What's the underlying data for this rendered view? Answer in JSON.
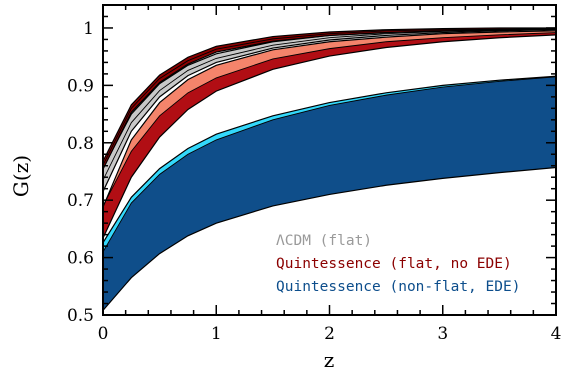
{
  "chart_data": {
    "type": "area",
    "xlabel": "z",
    "ylabel": "G(z)",
    "xlim": [
      0,
      4
    ],
    "ylim": [
      0.5,
      1.04
    ],
    "xticks": [
      0,
      1,
      2,
      3,
      4
    ],
    "xtick_labels": [
      "0",
      "1",
      "2",
      "3",
      "4"
    ],
    "yticks": [
      0.5,
      0.6,
      0.7,
      0.8,
      0.9,
      1.0
    ],
    "ytick_labels": [
      "0.5",
      "0.6",
      "0.7",
      "0.8",
      "0.9",
      "1"
    ],
    "grid": false,
    "legend_position": "bottom-right",
    "x": [
      0,
      0.25,
      0.5,
      0.75,
      1,
      1.5,
      2,
      2.5,
      3,
      3.5,
      4
    ],
    "bands": [
      {
        "legend": "Quintessence (non-flat, EDE)",
        "legend_color": "#0d4e8c",
        "lower": [
          0.508,
          0.565,
          0.607,
          0.638,
          0.66,
          0.69,
          0.71,
          0.726,
          0.738,
          0.748,
          0.757
        ],
        "upper": [
          0.626,
          0.705,
          0.755,
          0.79,
          0.815,
          0.847,
          0.87,
          0.887,
          0.9,
          0.909,
          0.916
        ],
        "fills": [
          "#0f4e8a",
          "#33d8fb"
        ],
        "split": [
          0.61,
          0.695,
          0.745,
          0.78,
          0.805,
          0.84,
          0.865,
          0.883,
          0.897,
          0.907,
          0.915
        ]
      },
      {
        "legend": "Quintessence (flat, no EDE)",
        "legend_color": "#8b0000",
        "lower": [
          0.634,
          0.74,
          0.81,
          0.858,
          0.89,
          0.928,
          0.951,
          0.966,
          0.976,
          0.983,
          0.988
        ],
        "upper": [
          0.688,
          0.805,
          0.87,
          0.91,
          0.935,
          0.962,
          0.976,
          0.984,
          0.99,
          0.993,
          0.995
        ],
        "fills": [
          "#b10e14",
          "#f4846b"
        ],
        "split": [
          0.69,
          0.785,
          0.847,
          0.887,
          0.913,
          0.946,
          0.964,
          0.976,
          0.983,
          0.988,
          0.992
        ]
      },
      {
        "legend": "ΛCDM (flat)",
        "legend_color": "#9a9a9a",
        "lower": [
          0.715,
          0.82,
          0.88,
          0.917,
          0.94,
          0.965,
          0.979,
          0.987,
          0.992,
          0.995,
          0.997
        ],
        "upper": [
          0.756,
          0.85,
          0.903,
          0.935,
          0.955,
          0.976,
          0.987,
          0.992,
          0.995,
          0.997,
          0.998
        ],
        "fills": [
          "#c8c8c8",
          "#c8c8c8"
        ],
        "split": [
          0.735,
          0.835,
          0.891,
          0.926,
          0.947,
          0.97,
          0.983,
          0.99,
          0.994,
          0.996,
          0.998
        ]
      },
      {
        "legend": "",
        "legend_color": "",
        "lower": [
          0.754,
          0.853,
          0.905,
          0.937,
          0.958,
          0.977,
          0.987,
          0.992,
          0.995,
          0.997,
          0.998
        ],
        "upper": [
          0.768,
          0.866,
          0.918,
          0.949,
          0.968,
          0.985,
          0.993,
          0.997,
          0.999,
          1.0,
          1.0
        ],
        "fills": [
          "#8b0000",
          "#8b0000"
        ],
        "split": [
          0.761,
          0.86,
          0.912,
          0.943,
          0.963,
          0.981,
          0.99,
          0.995,
          0.997,
          0.998,
          0.999
        ]
      }
    ]
  },
  "legend": {
    "entries": [
      {
        "label": "ΛCDM (flat)",
        "color": "#9a9a9a"
      },
      {
        "label": "Quintessence (flat, no EDE)",
        "color": "#8b0000"
      },
      {
        "label": "Quintessence (non-flat, EDE)",
        "color": "#0d4e8c"
      }
    ]
  },
  "axes": {
    "xlabel": "z",
    "ylabel": "G(z)"
  }
}
